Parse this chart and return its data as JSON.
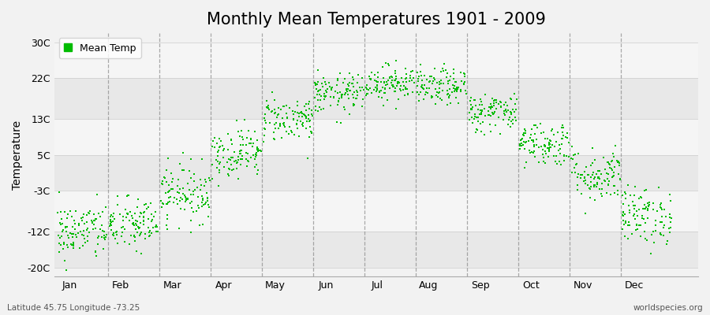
{
  "title": "Monthly Mean Temperatures 1901 - 2009",
  "ylabel": "Temperature",
  "subtitle_left": "Latitude 45.75 Longitude -73.25",
  "subtitle_right": "worldspecies.org",
  "legend_label": "Mean Temp",
  "dot_color": "#00bb00",
  "background_color": "#f2f2f2",
  "band_colors": [
    "#e8e8e8",
    "#f5f5f5"
  ],
  "ytick_labels": [
    "-20C",
    "-12C",
    "-3C",
    "5C",
    "13C",
    "22C",
    "30C"
  ],
  "ytick_values": [
    -20,
    -12,
    -3,
    5,
    13,
    22,
    30
  ],
  "ylim": [
    -22,
    32
  ],
  "months": [
    "Jan",
    "Feb",
    "Mar",
    "Apr",
    "May",
    "Jun",
    "Jul",
    "Aug",
    "Sep",
    "Oct",
    "Nov",
    "Dec"
  ],
  "monthly_means": [
    -12.0,
    -10.5,
    -3.5,
    5.5,
    13.0,
    18.5,
    21.0,
    20.0,
    14.5,
    7.5,
    0.5,
    -8.5
  ],
  "monthly_stds": [
    3.2,
    3.0,
    3.2,
    2.8,
    2.5,
    2.2,
    2.0,
    2.0,
    2.2,
    2.5,
    3.0,
    3.2
  ],
  "num_years": 109,
  "dot_size": 4,
  "dot_marker": "s",
  "title_fontsize": 15,
  "axis_fontsize": 10,
  "tick_fontsize": 9,
  "vline_color": "#888888",
  "hline_color": "#cccccc",
  "spine_color": "#aaaaaa"
}
